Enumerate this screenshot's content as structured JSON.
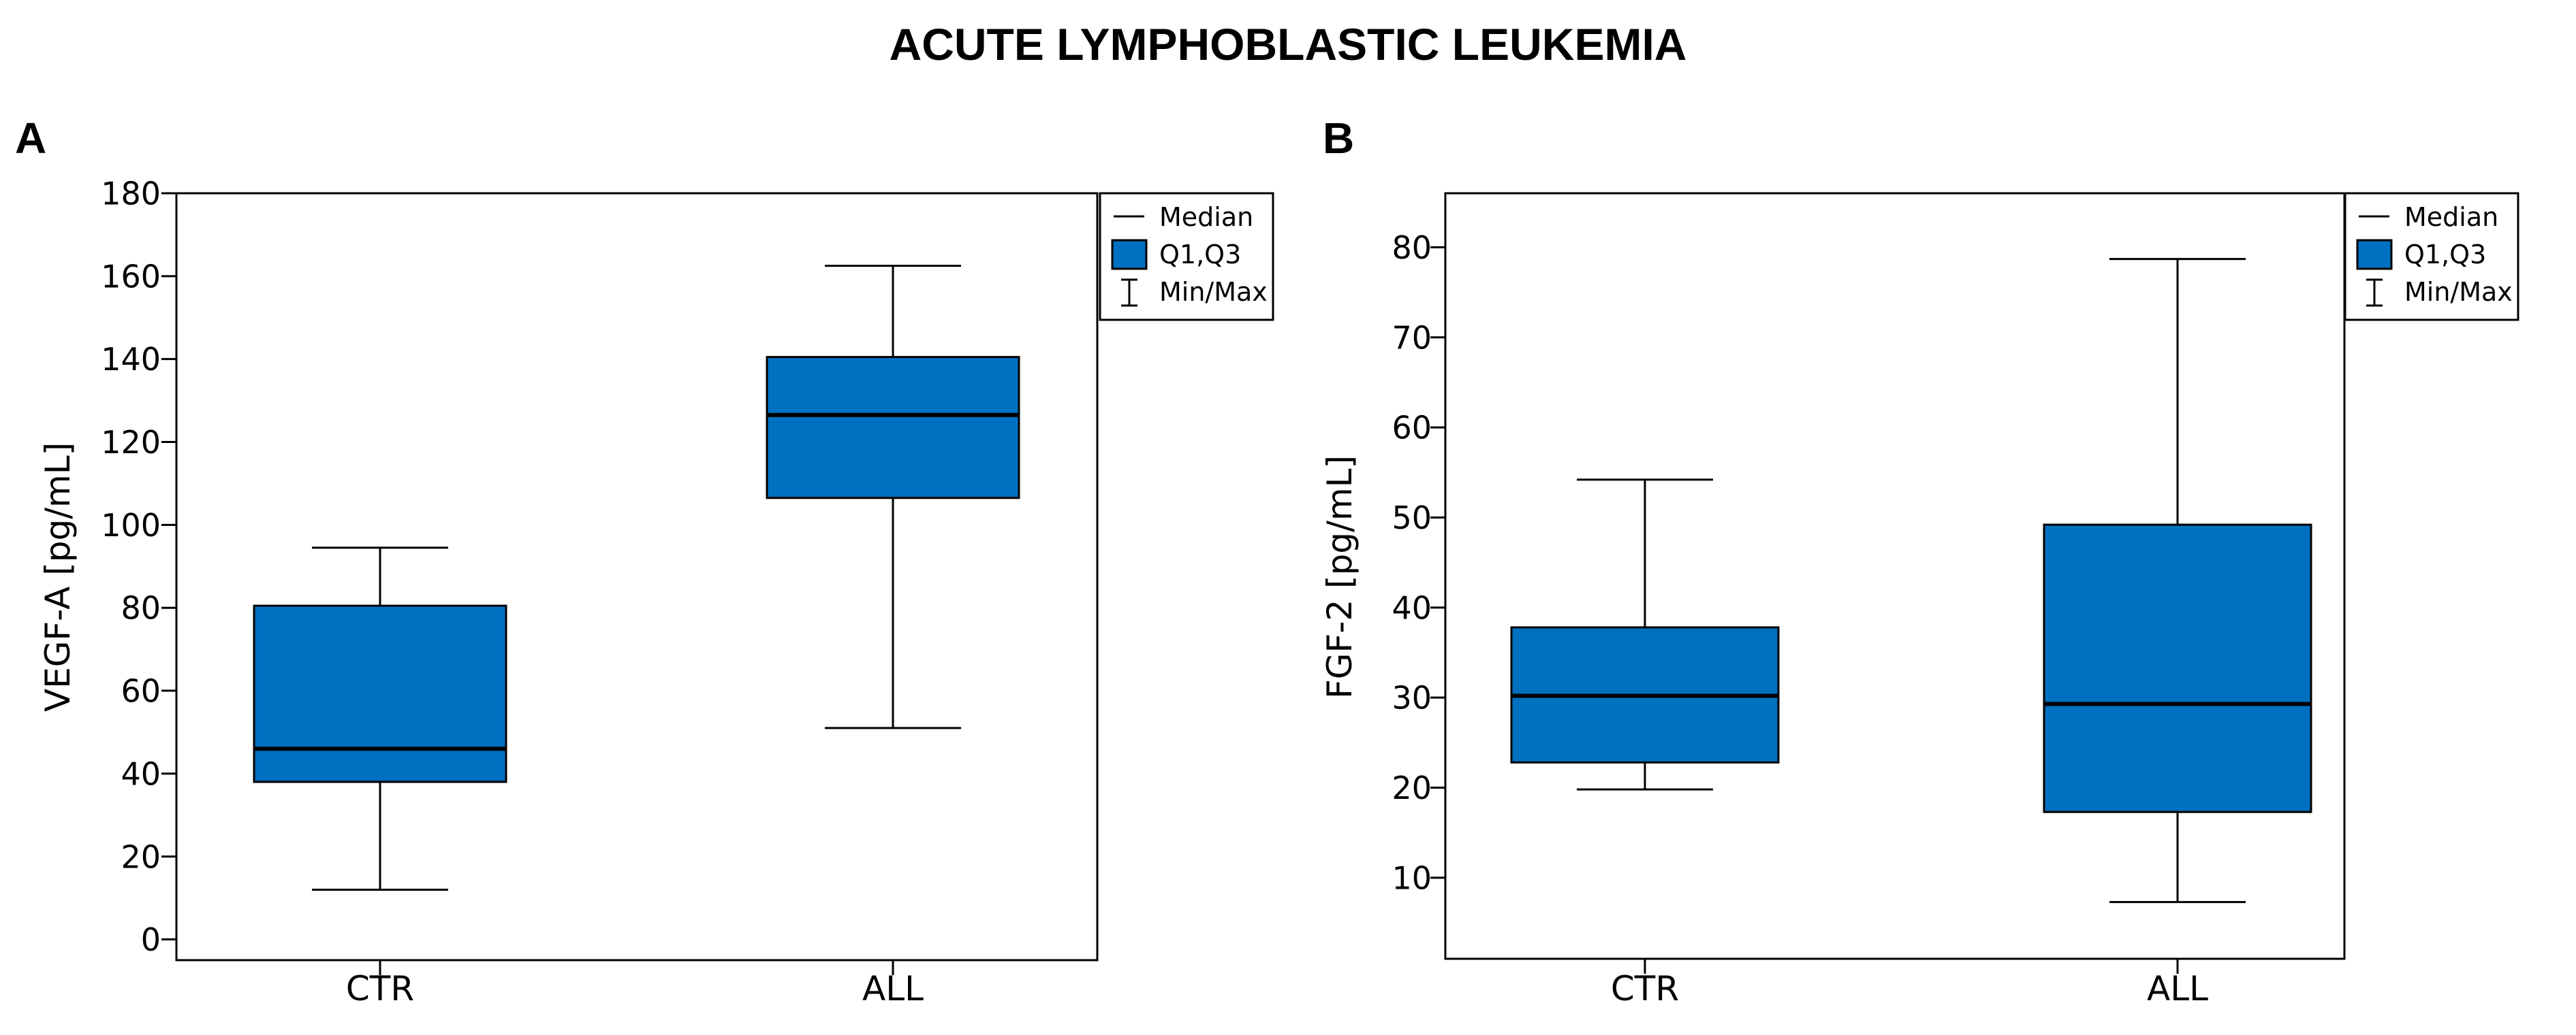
{
  "figure": {
    "title": "ACUTE LYMPHOBLASTIC LEUKEMIA",
    "box_color": "#0070C0"
  },
  "chart_data": [
    {
      "panel": "A",
      "type": "box",
      "ylabel": "VEGF-A [pg/mL]",
      "xlabel": "",
      "ylim": [
        -5,
        180
      ],
      "yticks": [
        0,
        20,
        40,
        60,
        80,
        100,
        120,
        140,
        160,
        180
      ],
      "grid": false,
      "legend_position": "top-right",
      "legend": [
        "Median",
        "Q1,Q3",
        "Min/Max"
      ],
      "categories": [
        "CTR",
        "ALL"
      ],
      "boxes": [
        {
          "category": "CTR",
          "min": 12,
          "q1": 38,
          "median": 46,
          "q3": 80.5,
          "max": 94.5
        },
        {
          "category": "ALL",
          "min": 51,
          "q1": 106.5,
          "median": 126.5,
          "q3": 140.5,
          "max": 162.5
        }
      ]
    },
    {
      "panel": "B",
      "type": "box",
      "ylabel": "FGF-2 [pg/mL]",
      "xlabel": "",
      "ylim": [
        1,
        86
      ],
      "yticks": [
        10,
        20,
        30,
        40,
        50,
        60,
        70,
        80
      ],
      "grid": false,
      "legend_position": "top-right",
      "legend": [
        "Median",
        "Q1,Q3",
        "Min/Max"
      ],
      "categories": [
        "CTR",
        "ALL"
      ],
      "boxes": [
        {
          "category": "CTR",
          "min": 19.8,
          "q1": 22.8,
          "median": 30.2,
          "q3": 37.8,
          "max": 54.2
        },
        {
          "category": "ALL",
          "min": 7.3,
          "q1": 17.3,
          "median": 29.3,
          "q3": 49.2,
          "max": 78.7
        }
      ]
    }
  ]
}
